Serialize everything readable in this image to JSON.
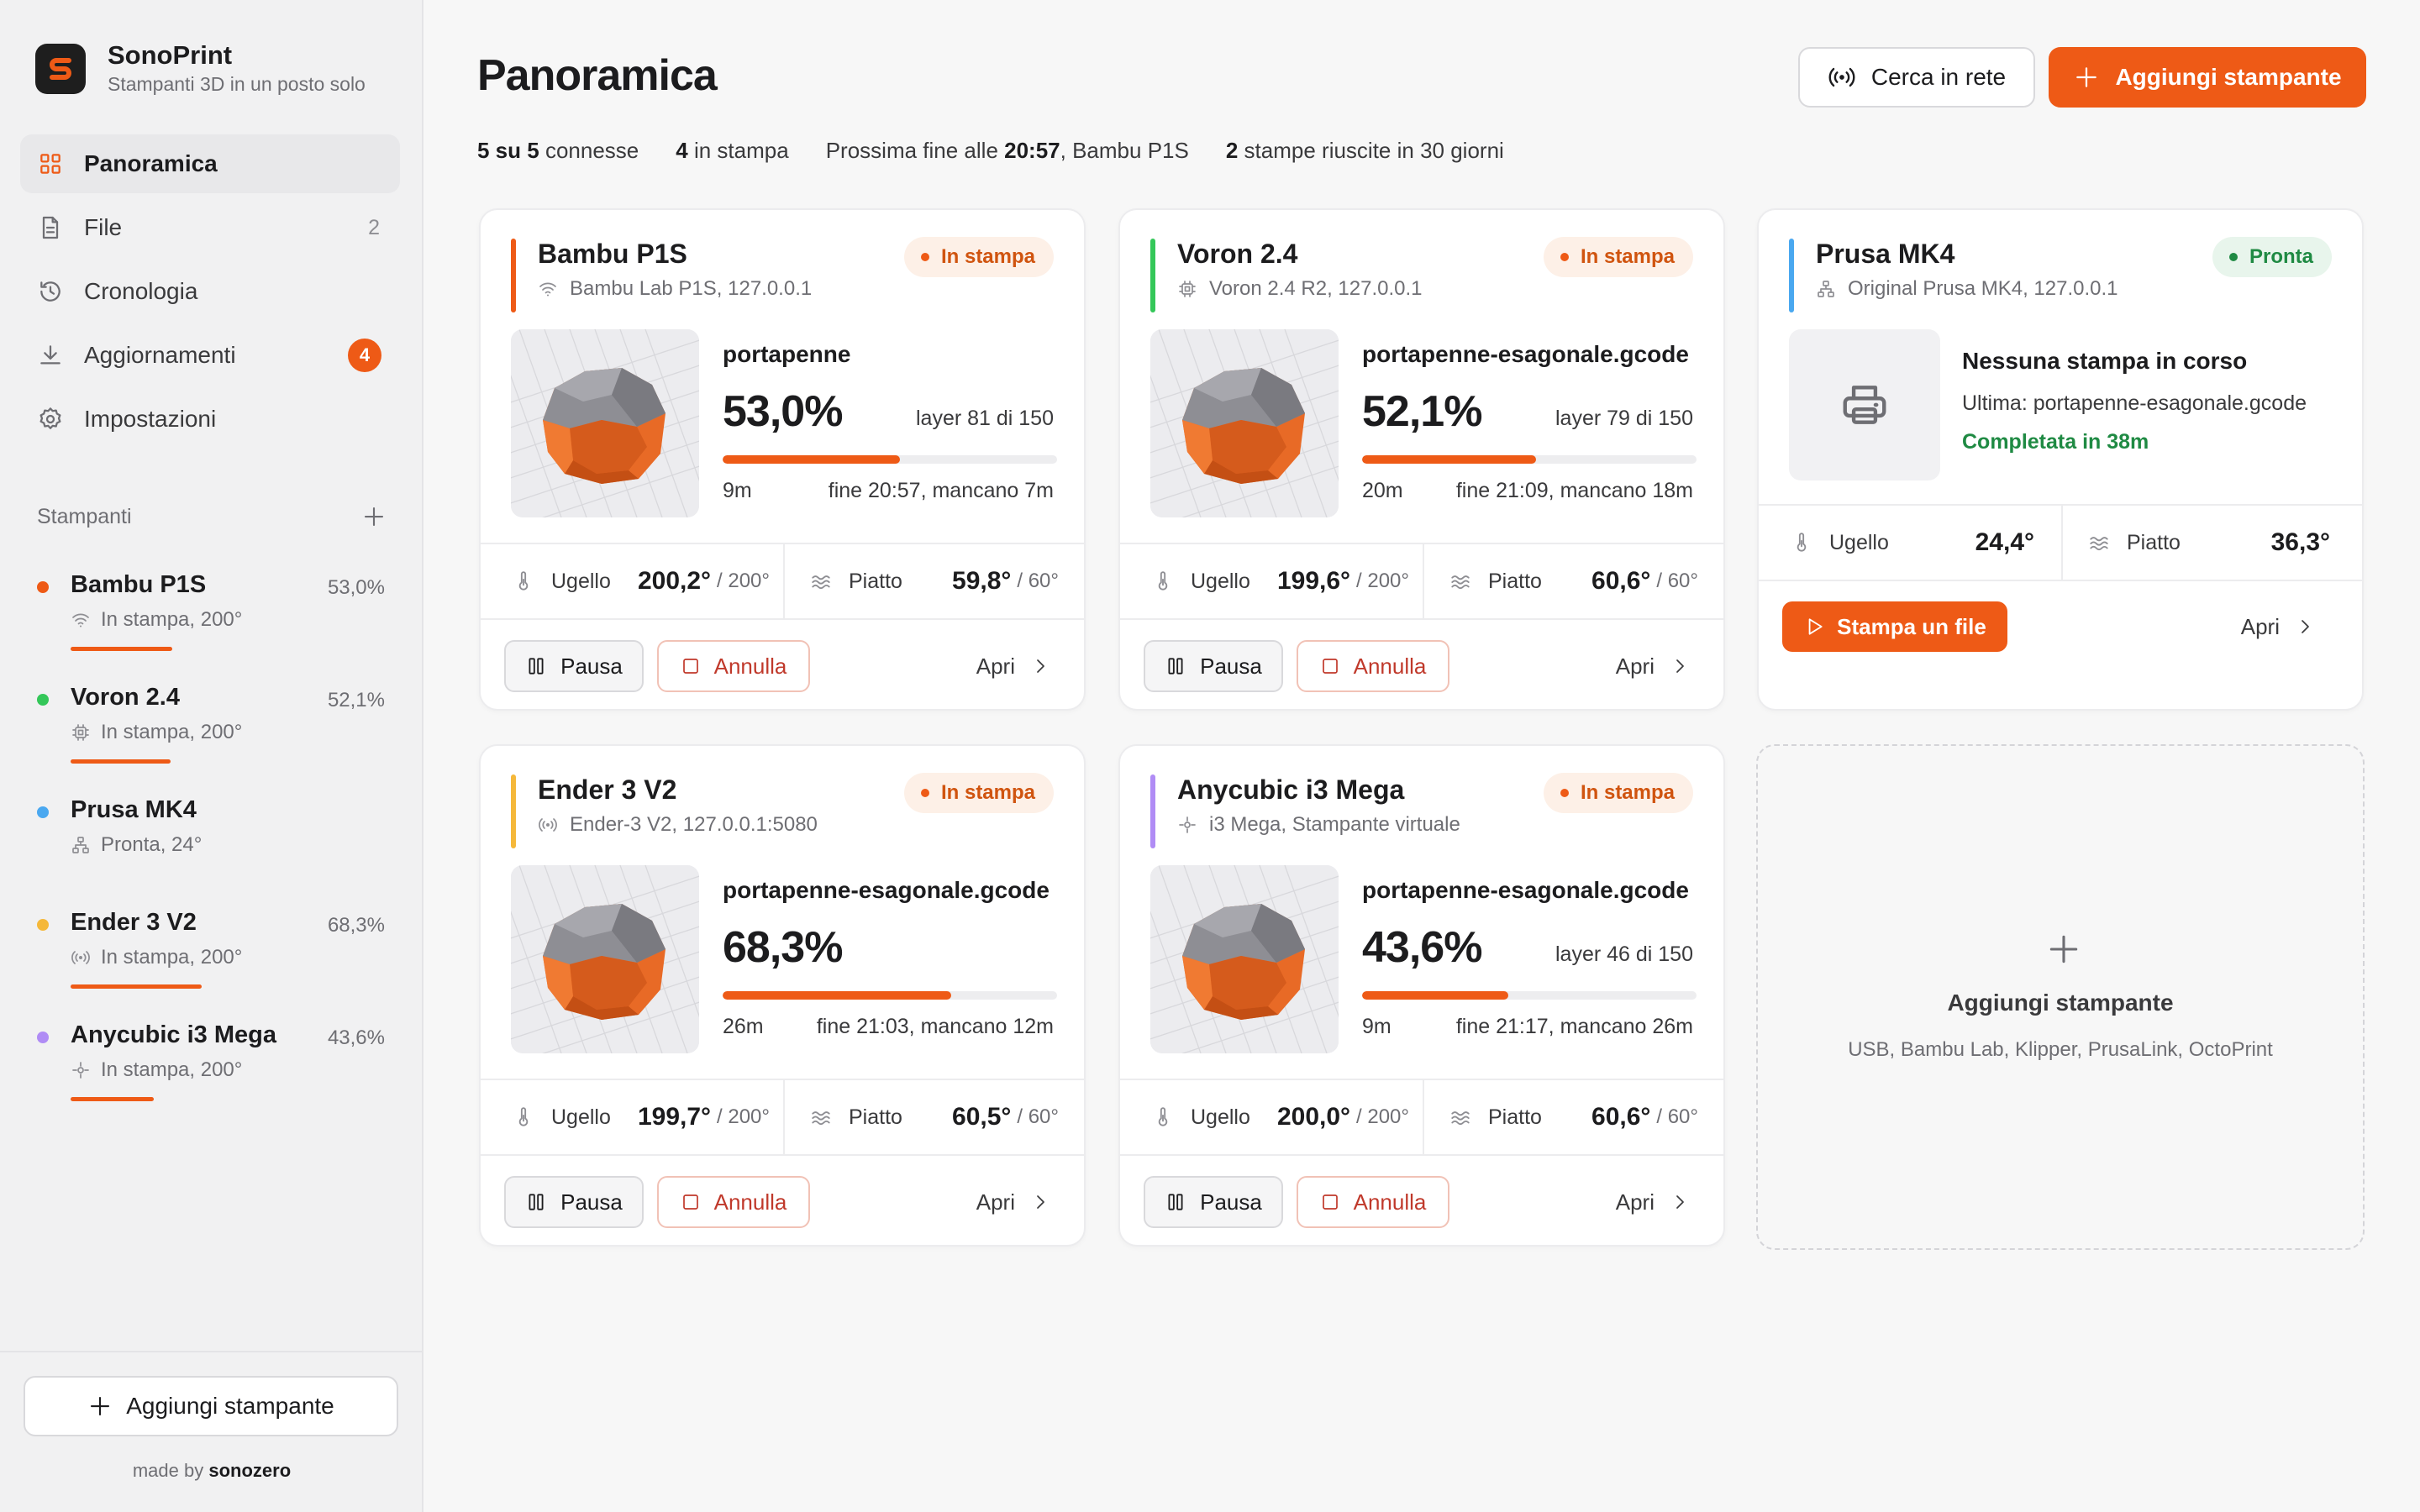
{
  "app": {
    "name": "SonoPrint",
    "tagline": "Stampanti 3D in un posto solo"
  },
  "colors": {
    "accent": "#ee5a16",
    "ready": "#1f8a43",
    "bambu": "#ee5a16",
    "voron": "#34c759",
    "prusa": "#4aa8f0",
    "ender": "#f5b83a",
    "anycubic": "#b08cf5"
  },
  "nav": {
    "items": [
      {
        "label": "Panoramica",
        "icon": "grid-icon",
        "active": true
      },
      {
        "label": "File",
        "icon": "file-icon",
        "count": "2"
      },
      {
        "label": "Cronologia",
        "icon": "history-icon"
      },
      {
        "label": "Aggiornamenti",
        "icon": "download-icon",
        "badge": "4"
      },
      {
        "label": "Impostazioni",
        "icon": "gear-icon"
      }
    ]
  },
  "sidebar_printers": {
    "title": "Stampanti",
    "items": [
      {
        "name": "Bambu P1S",
        "pct": "53,0%",
        "status": "In stampa, 200°",
        "progress": 0.53
      },
      {
        "name": "Voron 2.4",
        "pct": "52,1%",
        "status": "In stampa, 200°",
        "progress": 0.521
      },
      {
        "name": "Prusa MK4",
        "pct": "",
        "status": "Pronta, 24°"
      },
      {
        "name": "Ender 3 V2",
        "pct": "68,3%",
        "status": "In stampa, 200°",
        "progress": 0.683
      },
      {
        "name": "Anycubic i3 Mega",
        "pct": "43,6%",
        "status": "In stampa, 200°",
        "progress": 0.436
      }
    ],
    "add_label": "Aggiungi stampante",
    "made_by_prefix": "made by",
    "made_by_name": "sonozero"
  },
  "header": {
    "title": "Panoramica",
    "scan_label": "Cerca in rete",
    "add_label": "Aggiungi stampante"
  },
  "stats": {
    "connected_value": "5 su 5",
    "connected_label": "connesse",
    "printing_value": "4",
    "printing_label": "in stampa",
    "next_prefix": "Prossima fine alle",
    "next_time": "20:57",
    "next_printer": ", Bambu P1S",
    "success_value": "2",
    "success_label": "stampe riuscite in 30 giorni"
  },
  "labels": {
    "nozzle": "Ugello",
    "bed": "Piatto",
    "pause": "Pausa",
    "cancel": "Annulla",
    "open": "Apri",
    "status_printing": "In stampa",
    "status_ready": "Pronta"
  },
  "cards": [
    {
      "name": "Bambu P1S",
      "sub": "Bambu Lab P1S, 127.0.0.1",
      "file": "portapenne",
      "pct": "53,0%",
      "progress": 0.53,
      "layer": "layer 81 di 150",
      "elapsed": "9m",
      "eta": "fine 20:57, mancano 7m",
      "nozzle": "200,2°",
      "nozzle_target": "/ 200°",
      "bed": "59,8°",
      "bed_target": "/ 60°"
    },
    {
      "name": "Voron 2.4",
      "sub": "Voron 2.4 R2, 127.0.0.1",
      "file": "portapenne-esagonale.gcode",
      "pct": "52,1%",
      "progress": 0.521,
      "layer": "layer 79 di 150",
      "elapsed": "20m",
      "eta": "fine 21:09, mancano 18m",
      "nozzle": "199,6°",
      "nozzle_target": "/ 200°",
      "bed": "60,6°",
      "bed_target": "/ 60°"
    },
    {
      "name": "Ender 3 V2",
      "sub": "Ender-3 V2, 127.0.0.1:5080",
      "file": "portapenne-esagonale.gcode",
      "pct": "68,3%",
      "progress": 0.683,
      "layer": "",
      "elapsed": "26m",
      "eta": "fine 21:03, mancano 12m",
      "nozzle": "199,7°",
      "nozzle_target": "/ 200°",
      "bed": "60,5°",
      "bed_target": "/ 60°"
    },
    {
      "name": "Anycubic i3 Mega",
      "sub": "i3 Mega, Stampante virtuale",
      "file": "portapenne-esagonale.gcode",
      "pct": "43,6%",
      "progress": 0.436,
      "layer": "layer 46 di 150",
      "elapsed": "9m",
      "eta": "fine 21:17, mancano 26m",
      "nozzle": "200,0°",
      "nozzle_target": "/ 200°",
      "bed": "60,6°",
      "bed_target": "/ 60°"
    }
  ],
  "prusa_card": {
    "name": "Prusa MK4",
    "sub": "Original Prusa MK4, 127.0.0.1",
    "idle_title": "Nessuna stampa in corso",
    "last": "Ultima: portapenne-esagonale.gcode",
    "done": "Completata in 38m",
    "nozzle": "24,4°",
    "bed": "36,3°",
    "print_file": "Stampa un file"
  },
  "add_card": {
    "title": "Aggiungi stampante",
    "sub": "USB, Bambu Lab, Klipper, PrusaLink, OctoPrint"
  }
}
